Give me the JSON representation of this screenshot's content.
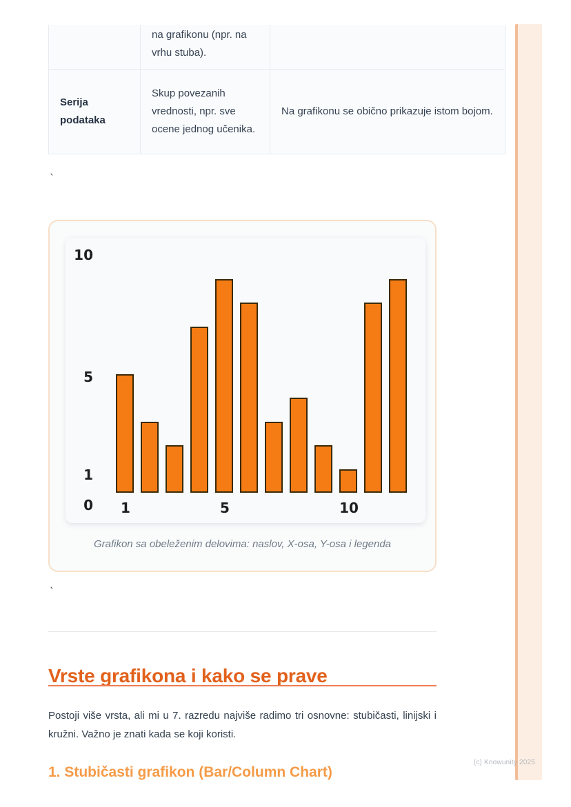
{
  "table": {
    "row1": {
      "term": "",
      "definition": "na grafikonu (npr. na vrhu stuba).",
      "note": ""
    },
    "row2": {
      "term": "Serija podataka",
      "definition": "Skup povezanih vrednosti, npr. sve ocene jednog učenika.",
      "note": "Na grafikonu se obično prikazuje istom bojom."
    }
  },
  "stray_marks": {
    "tick1": "`",
    "tick2": "`"
  },
  "chart_data": {
    "type": "bar",
    "x": [
      1,
      2,
      3,
      4,
      5,
      6,
      7,
      8,
      9,
      10,
      11,
      12
    ],
    "values": [
      5,
      3,
      2,
      7,
      9,
      8,
      3,
      4,
      2,
      1,
      8,
      9
    ],
    "title": "",
    "xlabel": "",
    "ylabel": "",
    "ylim": [
      0,
      10
    ],
    "y_ticks": [
      0,
      1,
      5,
      10
    ],
    "x_ticks": [
      1,
      5,
      10
    ],
    "grid": false,
    "legend": false,
    "bar_color": "#F57C14",
    "bar_edge_color": "#3A2A0A",
    "caption": "Grafikon sa obeleženim delovima: naslov, X-osa, Y-osa i legenda"
  },
  "section": {
    "heading": "Vrste grafikona i kako se prave",
    "paragraph": "Postoji više vrsta, ali mi u 7. razredu najviše radimo tri osnovne: stubičasti, linijski i kružni. Važno je znati kada se koji koristi.",
    "subheading": "1. Stubičasti grafikon (Bar/Column Chart)"
  },
  "footer": {
    "copyright": "(c) Knowunity 2025"
  },
  "colors": {
    "accent": "#E2611C",
    "accent_light": "#F59B47",
    "underline": "#EE7B52",
    "stripe_fill": "#FCEEE2",
    "stripe_edge": "#F2BD99",
    "bar": "#F57C14",
    "bar_edge": "#3A2A0A",
    "table_border": "#E7EBEF",
    "text": "#364354",
    "caption_text": "#6E7A85"
  }
}
